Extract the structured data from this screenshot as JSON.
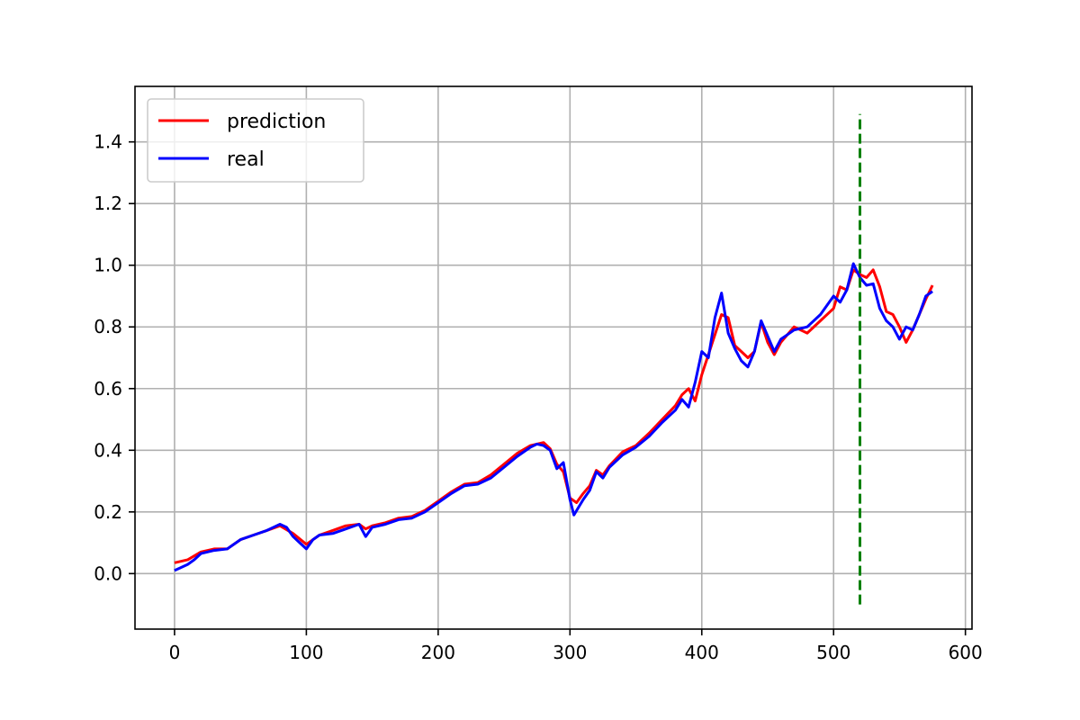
{
  "chart_data": {
    "type": "line",
    "title": "",
    "xlabel": "",
    "ylabel": "",
    "xlim": [
      -30,
      605
    ],
    "ylim": [
      -0.18,
      1.58
    ],
    "xticks": [
      0,
      100,
      200,
      300,
      400,
      500,
      600
    ],
    "yticks": [
      0.0,
      0.2,
      0.4,
      0.6,
      0.8,
      1.0,
      1.2,
      1.4
    ],
    "grid": true,
    "legend_position": "top-left",
    "series": [
      {
        "name": "prediction",
        "color": "#ff0000",
        "x": [
          0,
          10,
          20,
          30,
          40,
          50,
          60,
          70,
          80,
          90,
          100,
          110,
          120,
          130,
          140,
          145,
          150,
          160,
          170,
          180,
          190,
          200,
          210,
          220,
          230,
          240,
          250,
          260,
          270,
          280,
          285,
          290,
          295,
          300,
          305,
          310,
          315,
          320,
          325,
          330,
          340,
          350,
          360,
          370,
          380,
          385,
          390,
          395,
          400,
          405,
          410,
          415,
          420,
          425,
          430,
          435,
          440,
          445,
          450,
          455,
          460,
          470,
          480,
          490,
          500,
          505,
          510,
          515,
          520,
          525,
          530,
          535,
          540,
          545,
          550,
          555,
          560,
          565,
          570,
          575
        ],
        "values": [
          0.035,
          0.045,
          0.07,
          0.08,
          0.08,
          0.11,
          0.125,
          0.14,
          0.155,
          0.13,
          0.095,
          0.125,
          0.14,
          0.155,
          0.16,
          0.145,
          0.155,
          0.165,
          0.18,
          0.185,
          0.205,
          0.235,
          0.265,
          0.29,
          0.295,
          0.32,
          0.355,
          0.39,
          0.415,
          0.425,
          0.405,
          0.355,
          0.33,
          0.245,
          0.23,
          0.26,
          0.285,
          0.335,
          0.32,
          0.35,
          0.395,
          0.415,
          0.455,
          0.5,
          0.545,
          0.58,
          0.6,
          0.56,
          0.645,
          0.71,
          0.775,
          0.84,
          0.83,
          0.74,
          0.72,
          0.7,
          0.72,
          0.815,
          0.75,
          0.71,
          0.75,
          0.8,
          0.78,
          0.82,
          0.86,
          0.93,
          0.92,
          0.985,
          0.97,
          0.96,
          0.985,
          0.93,
          0.85,
          0.84,
          0.8,
          0.75,
          0.79,
          0.84,
          0.89,
          0.935
        ]
      },
      {
        "name": "real",
        "color": "#0000ff",
        "x": [
          0,
          5,
          10,
          15,
          20,
          30,
          40,
          50,
          60,
          70,
          80,
          85,
          90,
          95,
          100,
          105,
          110,
          120,
          130,
          140,
          145,
          150,
          160,
          170,
          180,
          190,
          200,
          210,
          220,
          230,
          240,
          250,
          260,
          270,
          275,
          280,
          285,
          290,
          295,
          300,
          303,
          310,
          315,
          320,
          325,
          330,
          340,
          350,
          360,
          370,
          380,
          385,
          390,
          395,
          400,
          405,
          410,
          415,
          420,
          425,
          430,
          435,
          440,
          445,
          450,
          455,
          460,
          465,
          470,
          480,
          490,
          500,
          505,
          510,
          515,
          520,
          525,
          530,
          535,
          540,
          545,
          550,
          555,
          560,
          565,
          570,
          575
        ],
        "values": [
          0.01,
          0.02,
          0.03,
          0.045,
          0.065,
          0.075,
          0.08,
          0.11,
          0.125,
          0.14,
          0.16,
          0.15,
          0.12,
          0.1,
          0.08,
          0.11,
          0.125,
          0.13,
          0.145,
          0.16,
          0.12,
          0.15,
          0.16,
          0.175,
          0.18,
          0.2,
          0.23,
          0.26,
          0.285,
          0.29,
          0.31,
          0.345,
          0.38,
          0.41,
          0.42,
          0.415,
          0.4,
          0.34,
          0.36,
          0.24,
          0.19,
          0.24,
          0.27,
          0.33,
          0.31,
          0.345,
          0.385,
          0.41,
          0.445,
          0.49,
          0.53,
          0.565,
          0.54,
          0.62,
          0.72,
          0.7,
          0.83,
          0.91,
          0.78,
          0.73,
          0.69,
          0.67,
          0.72,
          0.82,
          0.77,
          0.72,
          0.76,
          0.775,
          0.79,
          0.8,
          0.84,
          0.9,
          0.88,
          0.92,
          1.005,
          0.96,
          0.935,
          0.94,
          0.86,
          0.82,
          0.8,
          0.76,
          0.8,
          0.79,
          0.84,
          0.9,
          0.915
        ]
      },
      {
        "name": "",
        "color": "#008000",
        "dashed": true,
        "x": [
          520,
          520
        ],
        "values": [
          -0.1,
          1.49
        ]
      }
    ]
  }
}
